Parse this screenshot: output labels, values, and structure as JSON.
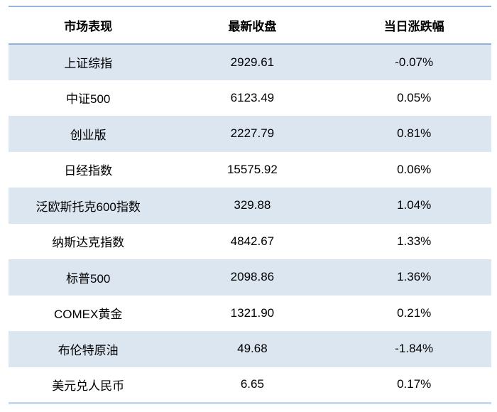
{
  "table": {
    "columns": [
      "市场表现",
      "最新收盘",
      "当日涨跌幅"
    ],
    "rows": [
      {
        "name": "上证综指",
        "close": "2929.61",
        "change": "-0.07%"
      },
      {
        "name": "中证500",
        "close": "6123.49",
        "change": "0.05%"
      },
      {
        "name": "创业版",
        "close": "2227.79",
        "change": "0.81%"
      },
      {
        "name": "日经指数",
        "close": "15575.92",
        "change": "0.06%"
      },
      {
        "name": "泛欧斯托克600指数",
        "close": "329.88",
        "change": "1.04%"
      },
      {
        "name": "纳斯达克指数",
        "close": "4842.67",
        "change": "1.33%"
      },
      {
        "name": "标普500",
        "close": "2098.86",
        "change": "1.36%"
      },
      {
        "name": "COMEX黄金",
        "close": "1321.90",
        "change": "0.21%"
      },
      {
        "name": "布伦特原油",
        "close": "49.68",
        "change": "-1.84%"
      },
      {
        "name": "美元兑人民币",
        "close": "6.65",
        "change": "0.17%"
      }
    ],
    "colors": {
      "rule_top": "#95b3d7",
      "rule_header": "#95b3d7",
      "rule_bottom": "#c5d9f1",
      "row_shaded": "#dce6f1",
      "row_plain": "#ffffff",
      "text": "#000000"
    }
  },
  "chart_data": {
    "type": "table",
    "title": "",
    "columns": [
      "市场表现",
      "最新收盘",
      "当日涨跌幅"
    ],
    "rows": [
      [
        "上证综指",
        2929.61,
        "-0.07%"
      ],
      [
        "中证500",
        6123.49,
        "0.05%"
      ],
      [
        "创业版",
        2227.79,
        "0.81%"
      ],
      [
        "日经指数",
        15575.92,
        "0.06%"
      ],
      [
        "泛欧斯托克600指数",
        329.88,
        "1.04%"
      ],
      [
        "纳斯达克指数",
        4842.67,
        "1.33%"
      ],
      [
        "标普500",
        2098.86,
        "1.36%"
      ],
      [
        "COMEX黄金",
        1321.9,
        "0.21%"
      ],
      [
        "布伦特原油",
        49.68,
        "-1.84%"
      ],
      [
        "美元兑人民币",
        6.65,
        "0.17%"
      ]
    ],
    "layout_hints": {
      "header_bold": true,
      "alternating_row_shading": "odd rows light blue starting with first data row",
      "alignment": "all columns centered",
      "rules": "blue horizontal rules above header, below header, and at table bottom; no vertical rules"
    }
  }
}
